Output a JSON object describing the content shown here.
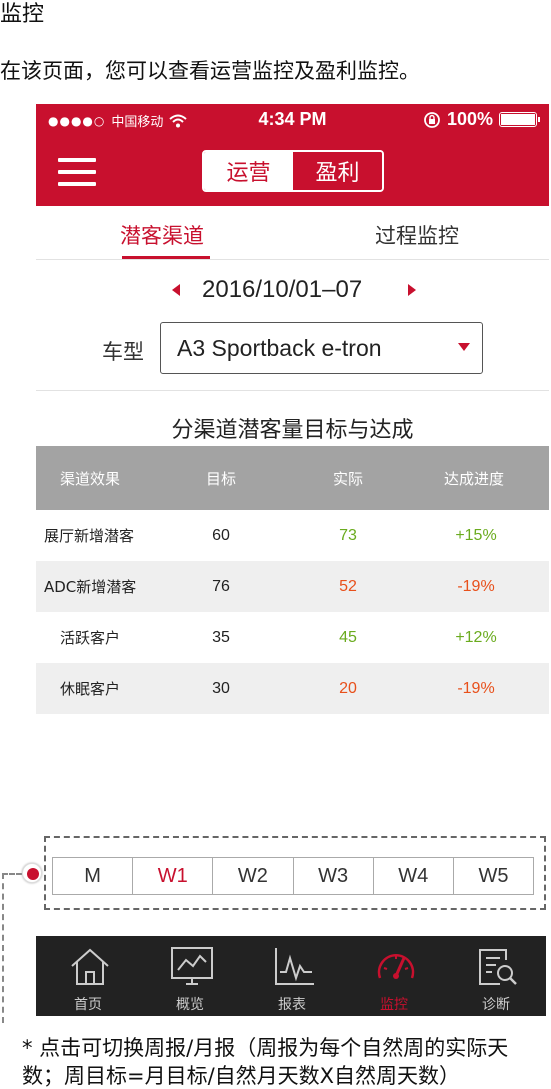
{
  "doc": {
    "title": "监控",
    "description": "在该页面，您可以查看运营监控及盈利监控。",
    "footnote": "*  点击可切换周报/月报（周报为每个自然周的实际天数；周目标=月目标/自然月天数X自然周天数）"
  },
  "statusbar": {
    "signal": "●●●●○",
    "carrier": "中国移动",
    "time": "4:34 PM",
    "battery": "100%"
  },
  "nav": {
    "seg_left": "运营",
    "seg_right": "盈利",
    "active_segment": "运营"
  },
  "tabs": [
    {
      "label": "潜客渠道",
      "active": true
    },
    {
      "label": "过程监控",
      "active": false
    }
  ],
  "date_range": "2016/10/01–07",
  "car": {
    "label": "车型",
    "value": "A3 Sportback e-tron"
  },
  "table": {
    "title": "分渠道潜客量目标与达成",
    "headers": [
      "渠道效果",
      "目标",
      "实际",
      "达成进度"
    ],
    "rows": [
      [
        "展厅新增潜客",
        "60",
        "73",
        "+15%"
      ],
      [
        "ADC新增潜客",
        "76",
        "52",
        "-19%"
      ],
      [
        "活跃客户",
        "35",
        "45",
        "+12%"
      ],
      [
        "休眠客户",
        "30",
        "20",
        "-19%"
      ]
    ]
  },
  "periods": [
    "M",
    "W1",
    "W2",
    "W3",
    "W4",
    "W5"
  ],
  "selected_period": "W1",
  "tabbar": [
    {
      "label": "首页",
      "icon": "home-icon"
    },
    {
      "label": "概览",
      "icon": "overview-monitor-icon"
    },
    {
      "label": "报表",
      "icon": "report-chart-icon"
    },
    {
      "label": "监控",
      "icon": "gauge-icon"
    },
    {
      "label": "诊断",
      "icon": "diagnosis-search-icon"
    }
  ],
  "active_tab": "监控",
  "colors": {
    "brand_red": "#c8102e",
    "positive": "#6aab1e",
    "negative": "#e8501b",
    "table_header": "#a3a3a3",
    "tabbar_bg": "#222222"
  }
}
